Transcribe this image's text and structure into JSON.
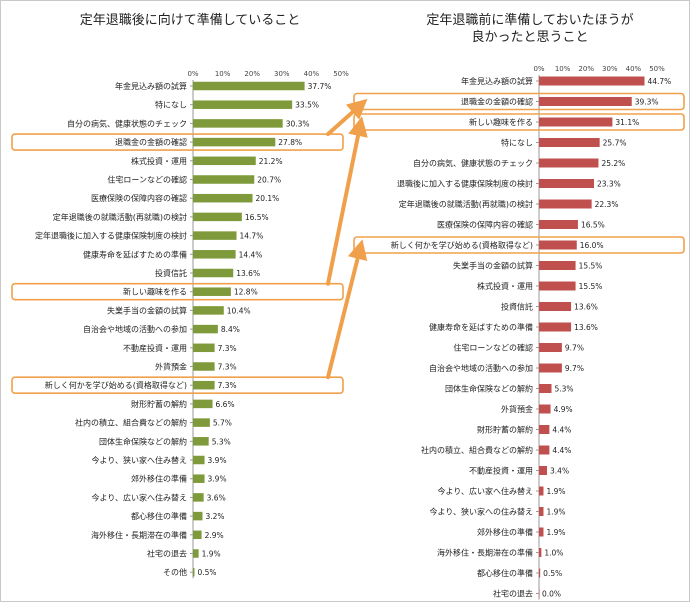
{
  "colors": {
    "left_bar": "#7f9a3a",
    "right_bar": "#c0504d",
    "highlight": "#f0a04a",
    "axis": "#999999"
  },
  "chart_data": [
    {
      "type": "bar",
      "orientation": "horizontal",
      "title": "定年退職後に向けて準備していること",
      "xlim": [
        0,
        50
      ],
      "xticks": [
        "0%",
        "10%",
        "20%",
        "30%",
        "40%",
        "50%"
      ],
      "categories": [
        "年金見込み額の試算",
        "特になし",
        "自分の病気、健康状態のチェック",
        "退職金の金額の確認",
        "株式投資・運用",
        "住宅ローンなどの確認",
        "医療保険の保障内容の確認",
        "定年退職後の就職活動(再就職)の検討",
        "定年退職後に加入する健康保険制度の検討",
        "健康寿命を延ばすための準備",
        "投資信託",
        "新しい趣味を作る",
        "失業手当の金額の試算",
        "自治会や地域の活動への参加",
        "不動産投資・運用",
        "外貨預金",
        "新しく何かを学び始める(資格取得など)",
        "財形貯蓄の解約",
        "社内の積立、組合費などの解約",
        "団体生命保険などの解約",
        "今より、狭い家へ住み替え",
        "郊外移住の準備",
        "今より、広い家へ住み替え",
        "都心移住の準備",
        "海外移住・長期滞在の準備",
        "社宅の退去",
        "その他"
      ],
      "values": [
        37.7,
        33.5,
        30.3,
        27.8,
        21.2,
        20.7,
        20.1,
        16.5,
        14.7,
        14.4,
        13.6,
        12.8,
        10.4,
        8.4,
        7.3,
        7.3,
        7.3,
        6.6,
        5.7,
        5.3,
        3.9,
        3.9,
        3.6,
        3.2,
        2.9,
        1.9,
        0.5
      ],
      "value_labels": [
        "37.7%",
        "33.5%",
        "30.3%",
        "27.8%",
        "21.2%",
        "20.7%",
        "20.1%",
        "16.5%",
        "14.7%",
        "14.4%",
        "13.6%",
        "12.8%",
        "10.4%",
        "8.4%",
        "7.3%",
        "7.3%",
        "7.3%",
        "6.6%",
        "5.7%",
        "5.3%",
        "3.9%",
        "3.9%",
        "3.6%",
        "3.2%",
        "2.9%",
        "1.9%",
        "0.5%"
      ],
      "highlighted": [
        "退職金の金額の確認",
        "新しい趣味を作る",
        "新しく何かを学び始める(資格取得など)"
      ]
    },
    {
      "type": "bar",
      "orientation": "horizontal",
      "title": "定年退職前に準備しておいたほうが\n良かったと思うこと",
      "xlim": [
        0,
        50
      ],
      "xticks": [
        "0%",
        "10%",
        "20%",
        "30%",
        "40%",
        "50%"
      ],
      "categories": [
        "年金見込み額の試算",
        "退職金の金額の確認",
        "新しい趣味を作る",
        "特になし",
        "自分の病気、健康状態のチェック",
        "退職後に加入する健康保険制度の検討",
        "定年退職後の就職活動(再就職)の検討",
        "医療保険の保障内容の確認",
        "新しく何かを学び始める(資格取得など)",
        "失業手当の金額の試算",
        "株式投資・運用",
        "投資信託",
        "健康寿命を延ばすための準備",
        "住宅ローンなどの確認",
        "自治会や地域の活動への参加",
        "団体生命保険などの解約",
        "外貨預金",
        "財形貯蓄の解約",
        "社内の積立、組合費などの解約",
        "不動産投資・運用",
        "今より、広い家へ住み替え",
        "今より、狭い家への住み替え",
        "郊外移住の準備",
        "海外移住・長期滞在の準備",
        "都心移住の準備",
        "社宅の退去"
      ],
      "values": [
        44.7,
        39.3,
        31.1,
        25.7,
        25.2,
        23.3,
        22.3,
        16.5,
        16.0,
        15.5,
        15.5,
        13.6,
        13.6,
        9.7,
        9.7,
        5.3,
        4.9,
        4.4,
        4.4,
        3.4,
        1.9,
        1.9,
        1.9,
        1.0,
        0.5,
        0.0
      ],
      "value_labels": [
        "44.7%",
        "39.3%",
        "31.1%",
        "25.7%",
        "25.2%",
        "23.3%",
        "22.3%",
        "16.5%",
        "16.0%",
        "15.5%",
        "15.5%",
        "13.6%",
        "13.6%",
        "9.7%",
        "9.7%",
        "5.3%",
        "4.9%",
        "4.4%",
        "4.4%",
        "3.4%",
        "1.9%",
        "1.9%",
        "1.9%",
        "1.0%",
        "0.5%",
        "0.0%"
      ],
      "highlighted": [
        "退職金の金額の確認",
        "新しい趣味を作る",
        "新しく何かを学び始める(資格取得など)"
      ]
    }
  ]
}
